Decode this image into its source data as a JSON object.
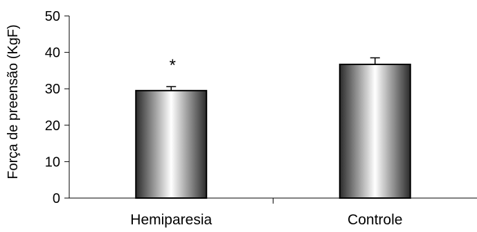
{
  "chart_data": {
    "type": "bar",
    "title": "",
    "xlabel": "",
    "ylabel": "Força de preensão (KgF)",
    "ylim": [
      0,
      50
    ],
    "yticks": [
      0,
      10,
      20,
      30,
      40,
      50
    ],
    "grid": false,
    "legend": "none",
    "categories": [
      "Hemiparesia",
      "Controle"
    ],
    "values": [
      29.5,
      36.7
    ],
    "error": [
      1.1,
      1.8
    ],
    "annotations": [
      {
        "category": "Hemiparesia",
        "text": "*"
      }
    ],
    "colors": {
      "bar_edge": "#000000",
      "bar_dark": "#2b2b2b",
      "bar_light": "#ffffff",
      "axis": "#000000"
    }
  }
}
